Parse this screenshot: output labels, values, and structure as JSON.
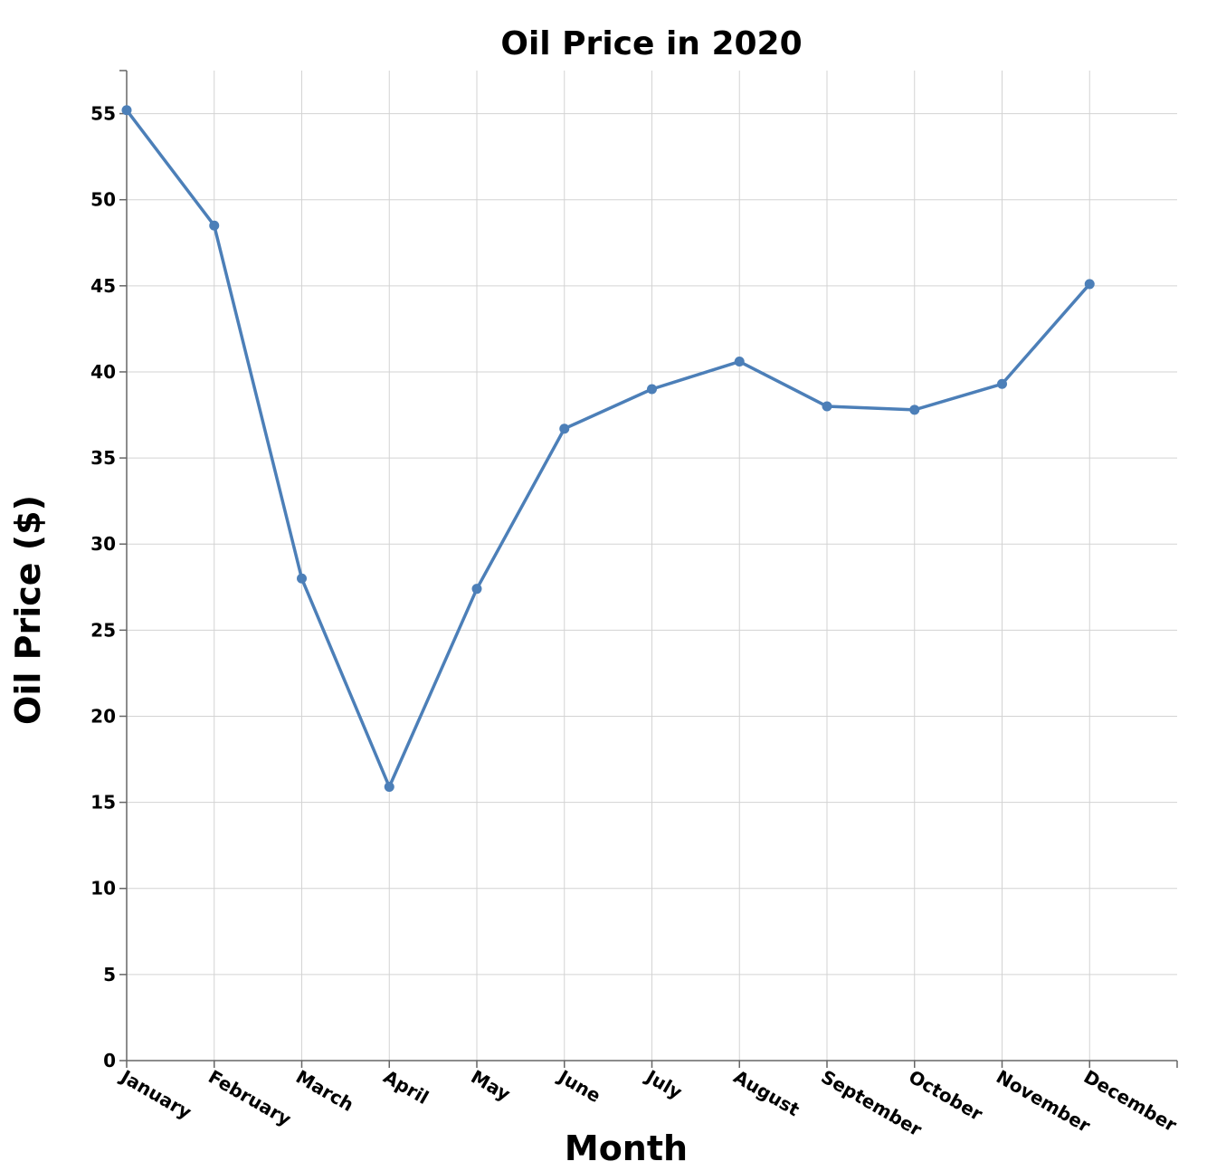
{
  "chart_data": {
    "type": "line",
    "title": "Oil Price in 2020",
    "xlabel": "Month",
    "ylabel": "Oil Price ($)",
    "categories": [
      "January",
      "February",
      "March",
      "April",
      "May",
      "June",
      "July",
      "August",
      "September",
      "October",
      "November",
      "December"
    ],
    "series": [
      {
        "values": [
          55.2,
          48.5,
          28.0,
          15.9,
          27.4,
          36.7,
          39.0,
          40.6,
          38.0,
          37.8,
          39.3,
          45.1
        ]
      }
    ],
    "ylim": [
      0,
      57.5
    ],
    "yticks": [
      0,
      5,
      10,
      15,
      20,
      25,
      30,
      35,
      40,
      45,
      50,
      55
    ],
    "grid": true,
    "colors": {
      "line": "#4c7fb8",
      "grid": "#d3d3d3",
      "axis": "#666666"
    }
  }
}
